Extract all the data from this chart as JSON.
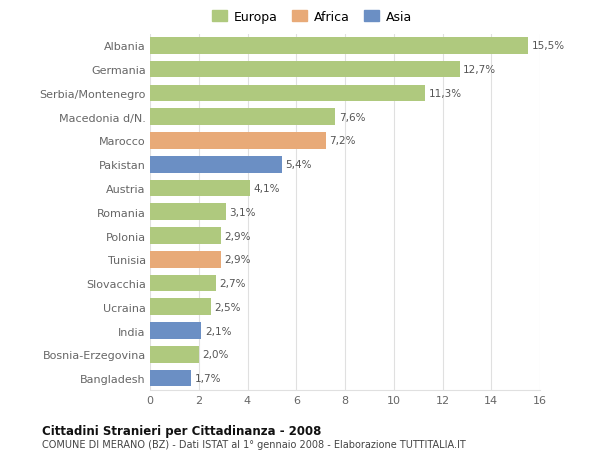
{
  "countries": [
    "Albania",
    "Germania",
    "Serbia/Montenegro",
    "Macedonia d/N.",
    "Marocco",
    "Pakistan",
    "Austria",
    "Romania",
    "Polonia",
    "Tunisia",
    "Slovacchia",
    "Ucraina",
    "India",
    "Bosnia-Erzegovina",
    "Bangladesh"
  ],
  "values": [
    15.5,
    12.7,
    11.3,
    7.6,
    7.2,
    5.4,
    4.1,
    3.1,
    2.9,
    2.9,
    2.7,
    2.5,
    2.1,
    2.0,
    1.7
  ],
  "labels": [
    "15,5%",
    "12,7%",
    "11,3%",
    "7,6%",
    "7,2%",
    "5,4%",
    "4,1%",
    "3,1%",
    "2,9%",
    "2,9%",
    "2,7%",
    "2,5%",
    "2,1%",
    "2,0%",
    "1,7%"
  ],
  "continents": [
    "Europa",
    "Europa",
    "Europa",
    "Europa",
    "Africa",
    "Asia",
    "Europa",
    "Europa",
    "Europa",
    "Africa",
    "Europa",
    "Europa",
    "Asia",
    "Europa",
    "Asia"
  ],
  "colors": {
    "Europa": "#afc97e",
    "Africa": "#e8aa78",
    "Asia": "#6b8fc4"
  },
  "title": "Cittadini Stranieri per Cittadinanza - 2008",
  "subtitle": "COMUNE DI MERANO (BZ) - Dati ISTAT al 1° gennaio 2008 - Elaborazione TUTTITALIA.IT",
  "xlim": [
    0,
    16
  ],
  "xticks": [
    0,
    2,
    4,
    6,
    8,
    10,
    12,
    14,
    16
  ],
  "bg_color": "#ffffff",
  "chart_bg": "#ffffff",
  "grid_color": "#e0e0e0",
  "label_color": "#666666",
  "value_color": "#555555"
}
